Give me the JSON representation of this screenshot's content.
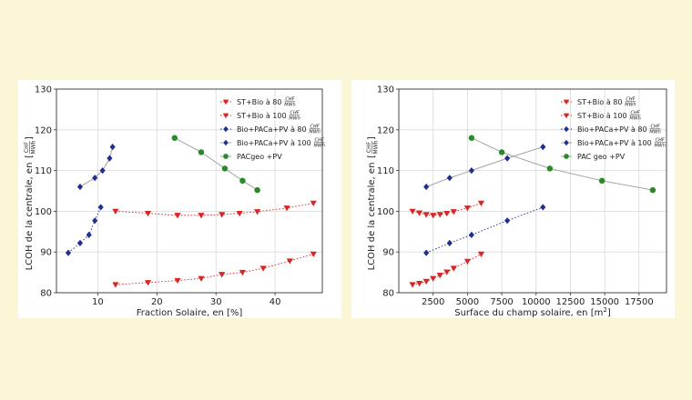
{
  "chart_data": [
    {
      "type": "scatter",
      "xlabel": "Fraction Solaire, en [%]",
      "ylabel": "LCOH de la centrale, en",
      "ylabel_unit_num": "CHF",
      "ylabel_unit_den": "MWh",
      "xlim": [
        3,
        48
      ],
      "ylim": [
        80,
        130
      ],
      "xticks": [
        10,
        20,
        30,
        40
      ],
      "yticks": [
        80,
        90,
        100,
        110,
        120,
        130
      ],
      "grid": true,
      "legend_position": "top-right",
      "series": [
        {
          "name": "ST+Bio à 80",
          "unit_num": "CHF",
          "unit_den": "MWh",
          "color": "#d62728",
          "marker": "triangle-down",
          "line": "dotted",
          "x": [
            13,
            18.5,
            23.5,
            27.5,
            31,
            34.5,
            38,
            42.5,
            46.5
          ],
          "y": [
            82,
            82.5,
            83,
            83.5,
            84.5,
            85,
            86,
            87.8,
            89.5
          ]
        },
        {
          "name": "ST+Bio à 100",
          "unit_num": "CHF",
          "unit_den": "MWh",
          "color": "#d62728",
          "marker": "triangle-down",
          "line": "dotted",
          "x": [
            13,
            18.5,
            23.5,
            27.5,
            31,
            34,
            37,
            42,
            46.5
          ],
          "y": [
            100,
            99.5,
            99,
            99,
            99.2,
            99.5,
            99.9,
            100.8,
            102
          ]
        },
        {
          "name": "Bio+PACa+PV à 80",
          "unit_num": "CHF",
          "unit_den": "MWh",
          "color": "#1f2f8f",
          "marker": "diamond",
          "line": "dotted",
          "x": [
            5,
            7,
            8.5,
            9.5,
            10.5
          ],
          "y": [
            89.8,
            92.2,
            94.2,
            97.7,
            101
          ]
        },
        {
          "name": "Bio+PACa+PV à 100",
          "unit_num": "CHF",
          "unit_den": "MWh",
          "color": "#1f2f8f",
          "marker": "diamond",
          "line": "solid",
          "x": [
            7,
            9.5,
            10.8,
            12,
            12.5
          ],
          "y": [
            106,
            108.2,
            110,
            113,
            115.8
          ]
        },
        {
          "name": "PACgeo +PV",
          "color": "#2a8a2a",
          "marker": "circle",
          "line": "solid",
          "x": [
            23,
            27.5,
            31.5,
            34.5,
            37
          ],
          "y": [
            118,
            114.5,
            110.5,
            107.5,
            105.2
          ]
        }
      ]
    },
    {
      "type": "scatter",
      "xlabel": "Surface du champ solaire, en",
      "xlabel_unit": "m",
      "xlabel_unit_exp": "2",
      "ylabel": "LCOH de la centrale, en",
      "ylabel_unit_num": "CHF",
      "ylabel_unit_den": "MWh",
      "xlim": [
        0,
        19500
      ],
      "ylim": [
        80,
        130
      ],
      "xticks": [
        2500,
        5000,
        7500,
        10000,
        12500,
        15000,
        17500
      ],
      "yticks": [
        80,
        90,
        100,
        110,
        120,
        130
      ],
      "grid": true,
      "legend_position": "top-left",
      "series": [
        {
          "name": "ST+Bio à 80",
          "unit_num": "CHF",
          "unit_den": "MWh",
          "color": "#d62728",
          "marker": "triangle-down",
          "line": "dotted",
          "x": [
            1000,
            1500,
            2000,
            2500,
            3000,
            3500,
            4000,
            5000,
            6000
          ],
          "y": [
            82,
            82.3,
            82.8,
            83.5,
            84.3,
            85.1,
            86,
            87.7,
            89.5
          ]
        },
        {
          "name": "ST+Bio à 100",
          "unit_num": "CHF",
          "unit_den": "MWh",
          "color": "#d62728",
          "marker": "triangle-down",
          "line": "dotted",
          "x": [
            1000,
            1500,
            2000,
            2500,
            3000,
            3500,
            4000,
            5000,
            6000
          ],
          "y": [
            100,
            99.6,
            99.2,
            99,
            99.2,
            99.5,
            99.9,
            100.8,
            102
          ]
        },
        {
          "name": "Bio+PACa+PV à 80",
          "unit_num": "CHF",
          "unit_den": "MWh",
          "color": "#1f2f8f",
          "marker": "diamond",
          "line": "dotted",
          "x": [
            2000,
            3700,
            5300,
            7900,
            10500
          ],
          "y": [
            89.8,
            92.2,
            94.2,
            97.7,
            101
          ]
        },
        {
          "name": "Bio+PACa+PV à 100",
          "unit_num": "CHF",
          "unit_den": "MWh",
          "color": "#1f2f8f",
          "marker": "diamond",
          "line": "solid",
          "x": [
            2000,
            3700,
            5300,
            7900,
            10500
          ],
          "y": [
            106,
            108.2,
            110,
            113,
            115.8
          ]
        },
        {
          "name": "PAC geo +PV",
          "color": "#2a8a2a",
          "marker": "circle",
          "line": "solid",
          "x": [
            5300,
            7500,
            11000,
            14800,
            18500
          ],
          "y": [
            118,
            114.5,
            110.5,
            107.5,
            105.2
          ]
        }
      ]
    }
  ]
}
